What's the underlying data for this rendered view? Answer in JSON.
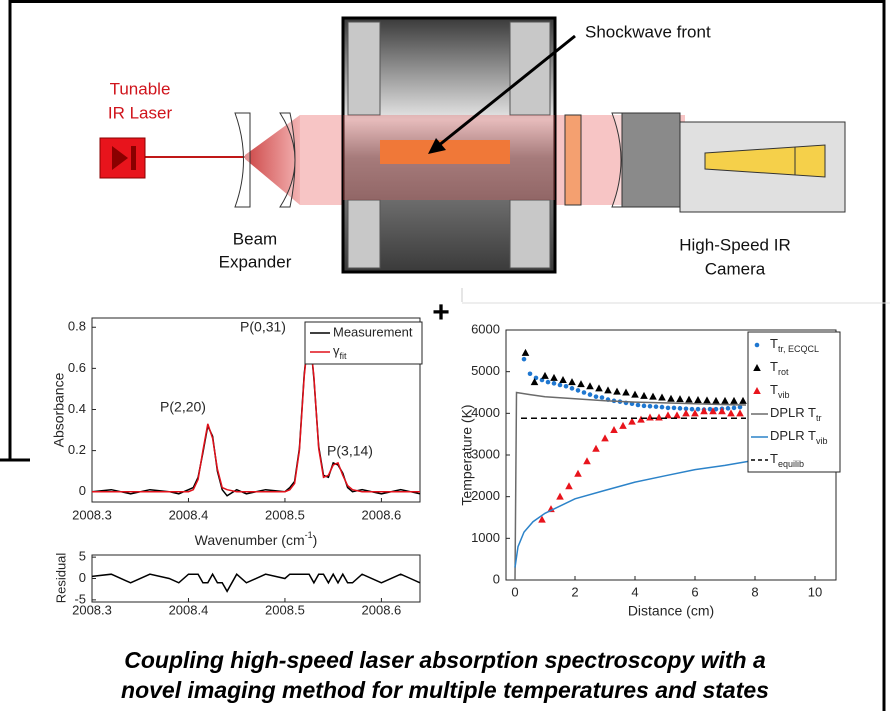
{
  "diagram": {
    "laser": [
      "Tunable",
      "IR Laser"
    ],
    "expander": [
      "Beam",
      "Expander"
    ],
    "shock": "Shockwave front",
    "camera": [
      "High-Speed IR",
      "Camera"
    ]
  },
  "separator": "+",
  "chart_data": [
    {
      "type": "line",
      "ylabel": "Absorbance",
      "xlabel": "Wavenumber (cm",
      "xlabel_sup": "-1",
      "xlabel_end": ")",
      "x": [
        2008.3,
        2008.32,
        2008.34,
        2008.36,
        2008.38,
        2008.39,
        2008.4,
        2008.405,
        2008.41,
        2008.415,
        2008.42,
        2008.425,
        2008.43,
        2008.435,
        2008.44,
        2008.45,
        2008.46,
        2008.48,
        2008.5,
        2008.505,
        2008.51,
        2008.515,
        2008.52,
        2008.525,
        2008.53,
        2008.535,
        2008.54,
        2008.545,
        2008.55,
        2008.555,
        2008.56,
        2008.565,
        2008.57,
        2008.58,
        2008.6,
        2008.62,
        2008.63,
        2008.64
      ],
      "series": [
        {
          "name": "Measurement",
          "color": "#000000",
          "values": [
            0,
            0.01,
            -0.01,
            0.01,
            0,
            -0.01,
            0.01,
            0.02,
            0.07,
            0.19,
            0.32,
            0.27,
            0.1,
            0.01,
            -0.02,
            0.01,
            -0.01,
            0.01,
            0,
            0.02,
            0.05,
            0.21,
            0.57,
            0.8,
            0.55,
            0.22,
            0.08,
            0.07,
            0.14,
            0.13,
            0.09,
            0.02,
            0,
            0.01,
            -0.01,
            0.01,
            0,
            -0.01
          ]
        },
        {
          "name": "γ",
          "name_sub": "fit",
          "color": "#e0101a",
          "values": [
            0,
            0,
            0,
            0,
            0,
            0,
            0,
            0.01,
            0.06,
            0.2,
            0.33,
            0.26,
            0.11,
            0.02,
            0.01,
            0,
            0,
            0,
            0,
            0.01,
            0.04,
            0.2,
            0.56,
            0.79,
            0.56,
            0.21,
            0.07,
            0.08,
            0.13,
            0.14,
            0.08,
            0.03,
            0.01,
            0,
            0,
            0,
            0,
            0
          ]
        }
      ],
      "annotations": [
        "P(2,20)",
        "P(0,31)",
        "P(3,14)"
      ],
      "xlim": [
        2008.3,
        2008.64
      ],
      "xticks": [
        2008.3,
        2008.4,
        2008.5,
        2008.6
      ],
      "ylim": [
        -0.05,
        0.845
      ],
      "yticks": [
        0,
        0.2,
        0.4,
        0.6,
        0.8
      ]
    },
    {
      "type": "line",
      "ylabel": "Residual",
      "series": [
        {
          "color": "#000000",
          "values": [
            0.5,
            1,
            -1,
            1,
            0,
            -1,
            1,
            1,
            1,
            -1,
            -1,
            1,
            -1,
            -1,
            -3,
            1,
            -1,
            1,
            0,
            1,
            1,
            1,
            1,
            1,
            -1,
            1,
            1,
            -1,
            1,
            -1,
            1,
            -1,
            -1,
            1,
            -1,
            1,
            0,
            -1
          ]
        }
      ],
      "xlim": [
        2008.3,
        2008.64
      ],
      "xticks": [
        2008.3,
        2008.4,
        2008.5,
        2008.6
      ],
      "ylim": [
        -5.5,
        5.5
      ],
      "yticks": [
        -5,
        0,
        5
      ]
    },
    {
      "type": "scatter",
      "ylabel": "Temperature (K)",
      "xlabel": "Distance (cm)",
      "series": [
        {
          "name": "T",
          "name_sub": "tr, ECQCL",
          "marker": "circle",
          "color": "#1f77d0",
          "x": [
            0.3,
            0.5,
            0.7,
            0.9,
            1.1,
            1.3,
            1.5,
            1.7,
            1.9,
            2.1,
            2.3,
            2.5,
            2.7,
            2.9,
            3.1,
            3.3,
            3.5,
            3.7,
            3.9,
            4.1,
            4.3,
            4.5,
            4.7,
            4.9,
            5.1,
            5.3,
            5.5,
            5.7,
            5.9,
            6.1,
            6.3,
            6.5,
            6.7,
            6.9,
            7.1,
            7.3,
            7.5
          ],
          "values": [
            5300,
            4950,
            4850,
            4800,
            4750,
            4720,
            4680,
            4650,
            4600,
            4550,
            4500,
            4450,
            4400,
            4380,
            4330,
            4300,
            4280,
            4250,
            4230,
            4200,
            4180,
            4170,
            4160,
            4150,
            4130,
            4130,
            4120,
            4110,
            4100,
            4100,
            4090,
            4100,
            4100,
            4110,
            4120,
            4130,
            4150
          ]
        },
        {
          "name": "T",
          "name_sub": "rot",
          "marker": "triangle",
          "color": "#000000",
          "x": [
            0.35,
            0.65,
            1.0,
            1.3,
            1.6,
            1.9,
            2.2,
            2.5,
            2.8,
            3.1,
            3.4,
            3.7,
            4.0,
            4.3,
            4.6,
            4.9,
            5.2,
            5.5,
            5.8,
            6.1,
            6.4,
            6.7,
            7.0,
            7.3,
            7.6
          ],
          "values": [
            5450,
            4750,
            4900,
            4850,
            4800,
            4750,
            4700,
            4650,
            4600,
            4550,
            4520,
            4500,
            4450,
            4420,
            4400,
            4380,
            4350,
            4340,
            4330,
            4320,
            4310,
            4300,
            4300,
            4300,
            4300
          ]
        },
        {
          "name": "T",
          "name_sub": "vib",
          "marker": "triangle",
          "color": "#e8141c",
          "x": [
            0.9,
            1.2,
            1.5,
            1.8,
            2.1,
            2.4,
            2.7,
            3.0,
            3.3,
            3.6,
            3.9,
            4.2,
            4.5,
            4.8,
            5.1,
            5.4,
            5.7,
            6.0,
            6.3,
            6.6,
            6.9,
            7.2,
            7.5
          ],
          "values": [
            1450,
            1700,
            2000,
            2250,
            2550,
            2850,
            3150,
            3400,
            3600,
            3700,
            3800,
            3850,
            3900,
            3900,
            3950,
            3950,
            4000,
            4000,
            4050,
            4050,
            4050,
            4000,
            4000
          ]
        },
        {
          "name": "DPLR T",
          "name_sub": "tr",
          "marker": "line",
          "color": "#6b6b6b",
          "x": [
            0,
            0.05,
            0.5,
            1,
            2,
            3,
            4,
            5,
            6,
            7,
            7.7
          ],
          "values": [
            0,
            4500,
            4450,
            4400,
            4350,
            4300,
            4270,
            4250,
            4230,
            4210,
            4200
          ]
        },
        {
          "name": "DPLR T",
          "name_sub": "vib",
          "marker": "line",
          "color": "#2c83c9",
          "x": [
            0,
            0.1,
            0.3,
            0.6,
            1,
            2,
            3,
            4,
            5,
            6,
            7,
            7.8
          ],
          "values": [
            300,
            800,
            1150,
            1400,
            1600,
            1950,
            2150,
            2350,
            2500,
            2650,
            2750,
            2850
          ]
        },
        {
          "name": "T",
          "name_sub": "equilib",
          "marker": "dashed",
          "color": "#000000",
          "x": [
            0.2,
            7.7
          ],
          "values": [
            3880,
            3880
          ]
        }
      ],
      "xlim": [
        -0.3,
        10.7
      ],
      "xticks": [
        0,
        2,
        4,
        6,
        8,
        10
      ],
      "ylim": [
        0,
        6000
      ],
      "yticks": [
        0,
        1000,
        2000,
        3000,
        4000,
        5000,
        6000
      ]
    }
  ],
  "caption": [
    "Coupling high-speed laser absorption spectroscopy with a",
    "novel imaging method for multiple temperatures and states"
  ]
}
